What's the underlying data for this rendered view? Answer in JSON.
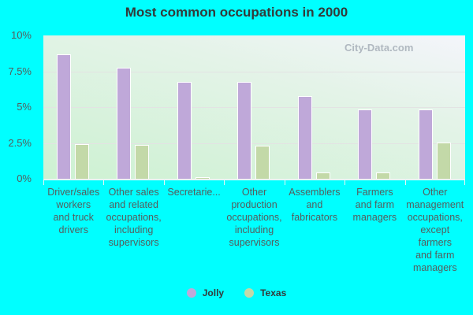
{
  "title": "Most common occupations in 2000",
  "watermark": "City-Data.com",
  "y_ticks": [
    "10%",
    "7.5%",
    "5%",
    "2.5%",
    "0%"
  ],
  "legend": [
    {
      "label": "Jolly",
      "color": "#bfa8d9"
    },
    {
      "label": "Texas",
      "color": "#c3d9a8"
    }
  ],
  "categories_display": [
    "Driver/sales\nworkers\nand truck\ndrivers",
    "Other sales\nand related\noccupations,\nincluding\nsupervisors",
    "Secretarie...",
    "Other\nproduction\noccupations,\nincluding\nsupervisors",
    "Assemblers\nand\nfabricators",
    "Farmers\nand farm\nmanagers",
    "Other\nmanagement\noccupations,\nexcept\nfarmers\nand farm\nmanagers"
  ],
  "chart_data": {
    "type": "bar",
    "title": "Most common occupations in 2000",
    "xlabel": "",
    "ylabel": "",
    "ylim": [
      0,
      10
    ],
    "y_unit": "%",
    "grid": true,
    "legend_position": "bottom",
    "categories": [
      "Driver/sales workers and truck drivers",
      "Other sales and related occupations, including supervisors",
      "Secretaries...",
      "Other production occupations, including supervisors",
      "Assemblers and fabricators",
      "Farmers and farm managers",
      "Other management occupations, except farmers and farm managers"
    ],
    "series": [
      {
        "name": "Jolly",
        "color": "#bfa8d9",
        "values": [
          8.7,
          7.75,
          6.75,
          6.75,
          5.75,
          4.85,
          4.85
        ]
      },
      {
        "name": "Texas",
        "color": "#c3d9a8",
        "values": [
          2.4,
          2.35,
          0.1,
          2.3,
          0.45,
          0.45,
          2.55
        ]
      }
    ]
  }
}
